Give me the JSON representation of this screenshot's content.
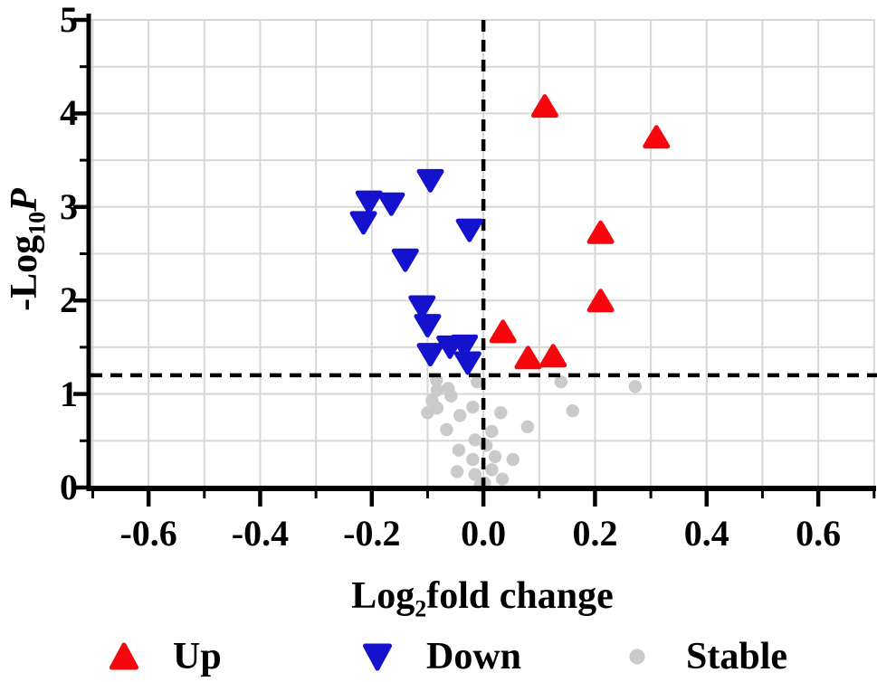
{
  "axis_titles": {
    "x_prefix": "Log",
    "x_sub": "2",
    "x_suffix": "fold change",
    "y_prefix": "-Log",
    "y_sub": "10",
    "y_italic": "P"
  },
  "legend": {
    "items": [
      {
        "label": "Up",
        "marker": "triangle-up",
        "color": "#f6060d"
      },
      {
        "label": "Down",
        "marker": "triangle-down",
        "color": "#1412cd"
      },
      {
        "label": "Stable",
        "marker": "circle",
        "color": "#cacaca"
      }
    ]
  },
  "chart_data": {
    "type": "scatter",
    "title": "",
    "xlabel": "Log2fold change",
    "ylabel": "-Log10P",
    "xlim": [
      -0.704,
      0.702
    ],
    "ylim": [
      0,
      5
    ],
    "x_tick_values": [
      -0.6,
      -0.4,
      -0.2,
      0,
      0.2,
      0.4,
      0.6
    ],
    "x_tick_labels": [
      "-0.6",
      "-0.4",
      "-0.2",
      "0.0",
      "0.2",
      "0.4",
      "0.6"
    ],
    "x_minor_tick_step": 0.1,
    "y_tick_values": [
      0,
      1,
      2,
      3,
      4,
      5
    ],
    "y_tick_labels": [
      "0",
      "1",
      "2",
      "3",
      "4",
      "5"
    ],
    "y_minor_tick_step": 0.5,
    "grid": {
      "show": true,
      "x_step": 0.1,
      "y_step": 0.5,
      "color": "#d7d7d7"
    },
    "threshold_lines": {
      "vertical_x": 0,
      "horizontal_y": 1.2,
      "style": "dashed",
      "color": "#000000"
    },
    "legend_position": "bottom",
    "axis_color": "#000000",
    "series": [
      {
        "name": "Up",
        "marker": "triangle-up",
        "color": "#f6060d",
        "points": [
          [
            0.11,
            4.07
          ],
          [
            0.31,
            3.74
          ],
          [
            0.21,
            2.72
          ],
          [
            0.21,
            1.99
          ],
          [
            0.035,
            1.66
          ],
          [
            0.08,
            1.38
          ],
          [
            0.125,
            1.4
          ]
        ]
      },
      {
        "name": "Down",
        "marker": "triangle-down",
        "color": "#1412cd",
        "points": [
          [
            -0.095,
            3.28
          ],
          [
            -0.205,
            3.05
          ],
          [
            -0.165,
            3.03
          ],
          [
            -0.215,
            2.83
          ],
          [
            -0.025,
            2.75
          ],
          [
            -0.14,
            2.43
          ],
          [
            -0.11,
            1.93
          ],
          [
            -0.1,
            1.73
          ],
          [
            -0.095,
            1.42
          ],
          [
            -0.06,
            1.5
          ],
          [
            -0.034,
            1.51
          ],
          [
            -0.028,
            1.33
          ]
        ]
      },
      {
        "name": "Stable",
        "marker": "circle",
        "color": "#cacaca",
        "points": [
          [
            -0.084,
            1.15
          ],
          [
            -0.011,
            1.13
          ],
          [
            0.139,
            1.13
          ],
          [
            0.272,
            1.08
          ],
          [
            -0.083,
            1.04
          ],
          [
            -0.063,
            1.06
          ],
          [
            -0.058,
            0.98
          ],
          [
            -0.092,
            0.93
          ],
          [
            -0.019,
            0.86
          ],
          [
            -0.083,
            0.85
          ],
          [
            -0.1,
            0.8
          ],
          [
            0.031,
            0.8
          ],
          [
            0.16,
            0.82
          ],
          [
            -0.042,
            0.77
          ],
          [
            -0.066,
            0.62
          ],
          [
            0.079,
            0.65
          ],
          [
            0.015,
            0.6
          ],
          [
            -0.015,
            0.51
          ],
          [
            0.005,
            0.45
          ],
          [
            -0.044,
            0.4
          ],
          [
            -0.019,
            0.3
          ],
          [
            0.021,
            0.33
          ],
          [
            0.053,
            0.3
          ],
          [
            -0.047,
            0.17
          ],
          [
            -0.015,
            0.14
          ],
          [
            0.015,
            0.19
          ],
          [
            0.034,
            0.09
          ],
          [
            -0.006,
            0.02
          ],
          [
            0.002,
            0.05
          ]
        ]
      }
    ]
  }
}
